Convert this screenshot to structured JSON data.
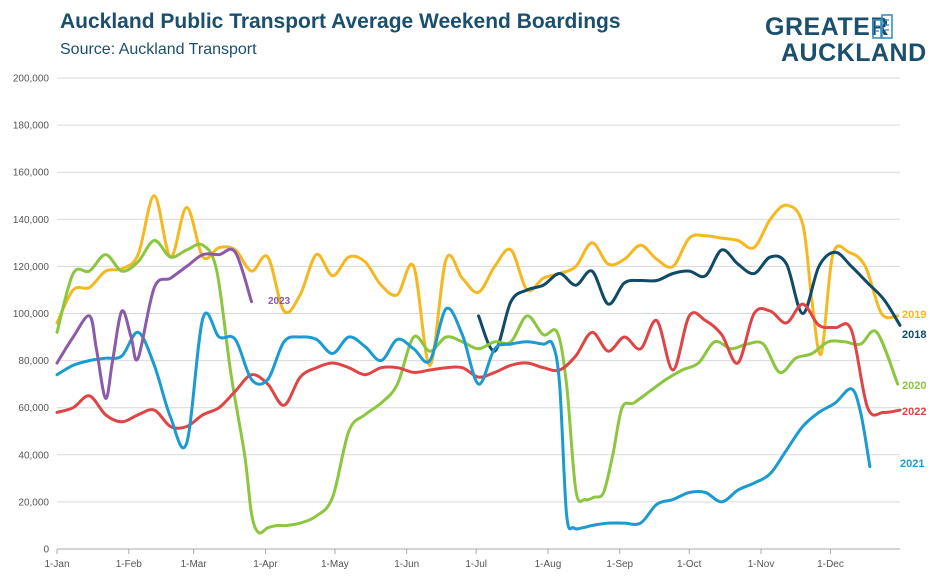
{
  "header": {
    "title": "Auckland Public Transport Average Weekend Boardings",
    "subtitle": "Source: Auckland Transport"
  },
  "logo": {
    "line1": "GREATER",
    "line2": "AUCKLAND"
  },
  "chart_data": {
    "type": "line",
    "title": "Auckland Public Transport Average Weekend Boardings",
    "subtitle": "Source: Auckland Transport",
    "xlabel": "",
    "ylabel": "",
    "ylim": [
      0,
      200000
    ],
    "yticks": [
      0,
      20000,
      40000,
      60000,
      80000,
      100000,
      120000,
      140000,
      160000,
      180000,
      200000
    ],
    "ytick_labels": [
      "0",
      "20,000",
      "40,000",
      "60,000",
      "80,000",
      "100,000",
      "120,000",
      "140,000",
      "160,000",
      "180,000",
      "200,000"
    ],
    "xlim": [
      1,
      365
    ],
    "x_ticks": [
      {
        "day": 1,
        "label": "1-Jan"
      },
      {
        "day": 32,
        "label": "1-Feb"
      },
      {
        "day": 60,
        "label": "1-Mar"
      },
      {
        "day": 91,
        "label": "1-Apr"
      },
      {
        "day": 121,
        "label": "1-May"
      },
      {
        "day": 152,
        "label": "1-Jun"
      },
      {
        "day": 182,
        "label": "1-Jul"
      },
      {
        "day": 213,
        "label": "1-Aug"
      },
      {
        "day": 244,
        "label": "1-Sep"
      },
      {
        "day": 274,
        "label": "1-Oct"
      },
      {
        "day": 305,
        "label": "1-Nov"
      },
      {
        "day": 335,
        "label": "1-Dec"
      }
    ],
    "grid": true,
    "legend": "labels at line ends (right)",
    "series": [
      {
        "name": "2019",
        "color": "#f5b820",
        "x": [
          1,
          8,
          15,
          22,
          29,
          36,
          43,
          50,
          57,
          64,
          71,
          78,
          85,
          92,
          99,
          106,
          113,
          120,
          127,
          134,
          141,
          148,
          155,
          162,
          169,
          176,
          183,
          190,
          197,
          204,
          211,
          218,
          225,
          232,
          239,
          246,
          253,
          260,
          267,
          274,
          281,
          288,
          295,
          302,
          309,
          316,
          323,
          327,
          331,
          336,
          343,
          350,
          357,
          364
        ],
        "y": [
          96000,
          110000,
          111000,
          118000,
          119000,
          125000,
          150000,
          124000,
          145000,
          124000,
          128000,
          127000,
          118000,
          124000,
          101000,
          108000,
          125000,
          116000,
          124000,
          122000,
          112000,
          108000,
          120000,
          78000,
          123000,
          115000,
          109000,
          120000,
          127000,
          110000,
          115000,
          117000,
          120000,
          130000,
          121000,
          123000,
          129000,
          123000,
          120000,
          132000,
          133000,
          132000,
          131000,
          128000,
          140000,
          146000,
          138000,
          105000,
          83000,
          125000,
          126000,
          120000,
          100000,
          99000
        ]
      },
      {
        "name": "2018",
        "color": "#0f4a66",
        "x": [
          183,
          190,
          197,
          204,
          211,
          218,
          225,
          232,
          239,
          246,
          253,
          260,
          267,
          274,
          281,
          288,
          295,
          302,
          309,
          316,
          323,
          330,
          337,
          344,
          351,
          358,
          365
        ],
        "y": [
          99000,
          84000,
          105000,
          110000,
          112000,
          117000,
          112000,
          118000,
          104000,
          113000,
          114000,
          114000,
          117000,
          118000,
          116000,
          127000,
          121000,
          117000,
          124000,
          121000,
          100000,
          120000,
          126000,
          120000,
          113000,
          106000,
          95000
        ]
      },
      {
        "name": "2020",
        "color": "#8cc63f",
        "x": [
          1,
          8,
          15,
          22,
          29,
          36,
          43,
          50,
          57,
          64,
          70,
          76,
          82,
          85,
          88,
          92,
          96,
          100,
          106,
          113,
          120,
          127,
          134,
          141,
          148,
          155,
          162,
          169,
          176,
          183,
          190,
          197,
          204,
          211,
          217,
          221,
          225,
          229,
          233,
          237,
          241,
          245,
          250,
          257,
          264,
          271,
          278,
          285,
          292,
          299,
          306,
          313,
          320,
          327,
          334,
          341,
          348,
          355,
          364
        ],
        "y": [
          92000,
          117000,
          118000,
          125000,
          118000,
          122000,
          131000,
          124000,
          127000,
          129000,
          118000,
          75000,
          40000,
          15000,
          7000,
          9000,
          10000,
          10000,
          11000,
          14000,
          22000,
          50000,
          57000,
          62000,
          70000,
          90000,
          84000,
          90000,
          88000,
          85000,
          88000,
          88000,
          99000,
          91000,
          92000,
          70000,
          25000,
          21000,
          22000,
          24000,
          40000,
          60000,
          62000,
          67000,
          72000,
          76000,
          79000,
          88000,
          85000,
          87000,
          87000,
          75000,
          81000,
          83000,
          88000,
          88000,
          87000,
          92000,
          70000
        ]
      },
      {
        "name": "2022",
        "color": "#e04545",
        "x": [
          1,
          8,
          15,
          22,
          29,
          36,
          43,
          50,
          57,
          64,
          71,
          78,
          85,
          92,
          99,
          106,
          113,
          120,
          127,
          134,
          141,
          148,
          155,
          162,
          169,
          176,
          183,
          190,
          197,
          204,
          211,
          218,
          225,
          232,
          239,
          246,
          253,
          260,
          267,
          274,
          281,
          288,
          295,
          302,
          309,
          316,
          323,
          330,
          337,
          344,
          351,
          358,
          365
        ],
        "y": [
          58000,
          60000,
          65000,
          57000,
          54000,
          57000,
          59000,
          52000,
          52000,
          57000,
          60000,
          67000,
          74000,
          70000,
          61000,
          73000,
          77000,
          79000,
          77000,
          74000,
          77000,
          77000,
          75000,
          76000,
          77000,
          77000,
          73000,
          75000,
          78000,
          79000,
          77000,
          76000,
          82000,
          92000,
          84000,
          90000,
          85000,
          97000,
          76000,
          99000,
          97000,
          91000,
          79000,
          100000,
          101000,
          96000,
          104000,
          95000,
          94000,
          93000,
          60000,
          58000,
          59000
        ]
      },
      {
        "name": "2021",
        "color": "#1b9bd1",
        "x": [
          1,
          8,
          15,
          22,
          29,
          36,
          43,
          50,
          57,
          64,
          71,
          78,
          85,
          92,
          99,
          106,
          113,
          120,
          127,
          134,
          141,
          148,
          155,
          162,
          169,
          176,
          183,
          190,
          197,
          204,
          211,
          215,
          218,
          221,
          224,
          228,
          232,
          239,
          246,
          253,
          260,
          267,
          274,
          281,
          288,
          295,
          302,
          309,
          316,
          323,
          330,
          337,
          344,
          348,
          352
        ],
        "y": [
          74000,
          78000,
          80000,
          81000,
          82000,
          92000,
          78000,
          56000,
          45000,
          98000,
          90000,
          89000,
          72000,
          72000,
          88000,
          90000,
          89000,
          83000,
          90000,
          86000,
          80000,
          89000,
          85000,
          80000,
          102000,
          91000,
          70000,
          85000,
          87000,
          88000,
          87000,
          87000,
          70000,
          15000,
          9000,
          9000,
          10000,
          11000,
          11000,
          11000,
          19000,
          21000,
          24000,
          24000,
          20000,
          25000,
          28000,
          32000,
          42000,
          52000,
          58000,
          62000,
          68000,
          58000,
          35000
        ]
      },
      {
        "name": "2023",
        "color": "#8b5aa8",
        "x": [
          1,
          8,
          15,
          18,
          22,
          25,
          29,
          33,
          36,
          43,
          50,
          57,
          64,
          71,
          78,
          85
        ],
        "y": [
          79000,
          90000,
          99000,
          85000,
          64000,
          80000,
          101000,
          90000,
          81000,
          111000,
          115000,
          120000,
          125000,
          125000,
          126000,
          105000
        ]
      }
    ]
  }
}
